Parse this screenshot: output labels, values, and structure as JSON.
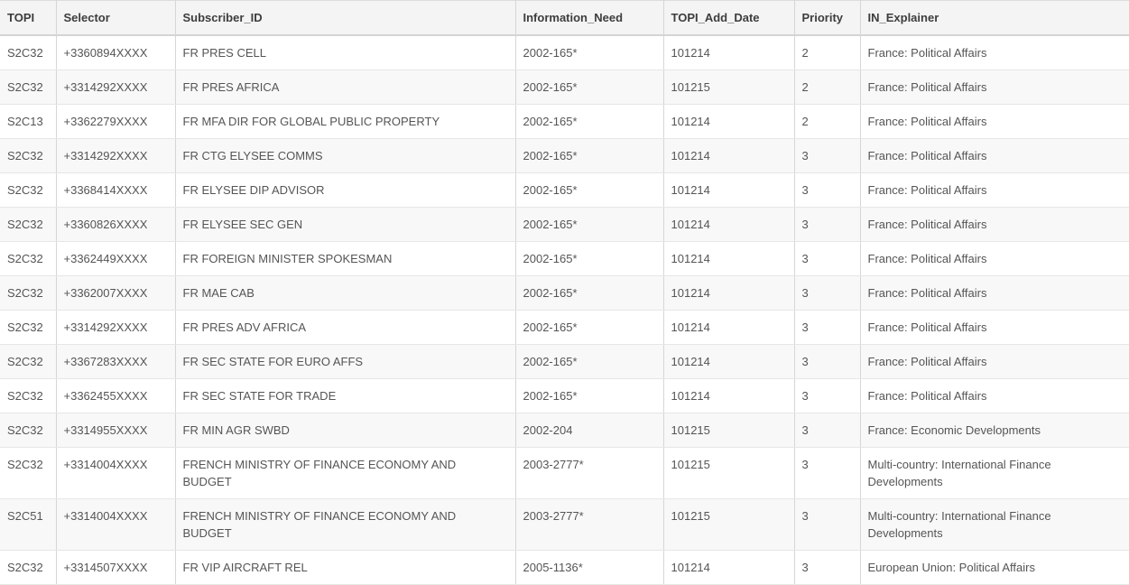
{
  "table": {
    "columns": [
      "TOPI",
      "Selector",
      "Subscriber_ID",
      "Information_Need",
      "TOPI_Add_Date",
      "Priority",
      "IN_Explainer"
    ],
    "rows": [
      [
        "S2C32",
        "+3360894XXXX",
        "FR PRES CELL",
        "2002-165*",
        "101214",
        "2",
        "France: Political Affairs"
      ],
      [
        "S2C32",
        "+3314292XXXX",
        "FR PRES AFRICA",
        "2002-165*",
        "101215",
        "2",
        "France: Political Affairs"
      ],
      [
        "S2C13",
        "+3362279XXXX",
        "FR MFA DIR FOR GLOBAL PUBLIC PROPERTY",
        "2002-165*",
        "101214",
        "2",
        "France: Political Affairs"
      ],
      [
        "S2C32",
        "+3314292XXXX",
        "FR CTG ELYSEE COMMS",
        "2002-165*",
        "101214",
        "3",
        "France: Political Affairs"
      ],
      [
        "S2C32",
        "+3368414XXXX",
        "FR ELYSEE DIP ADVISOR",
        "2002-165*",
        "101214",
        "3",
        "France: Political Affairs"
      ],
      [
        "S2C32",
        "+3360826XXXX",
        "FR ELYSEE SEC GEN",
        "2002-165*",
        "101214",
        "3",
        "France: Political Affairs"
      ],
      [
        "S2C32",
        "+3362449XXXX",
        "FR FOREIGN MINISTER SPOKESMAN",
        "2002-165*",
        "101214",
        "3",
        "France: Political Affairs"
      ],
      [
        "S2C32",
        "+3362007XXXX",
        "FR MAE CAB",
        "2002-165*",
        "101214",
        "3",
        "France: Political Affairs"
      ],
      [
        "S2C32",
        "+3314292XXXX",
        "FR PRES ADV AFRICA",
        "2002-165*",
        "101214",
        "3",
        "France: Political Affairs"
      ],
      [
        "S2C32",
        "+3367283XXXX",
        "FR SEC STATE FOR EURO AFFS",
        "2002-165*",
        "101214",
        "3",
        "France: Political Affairs"
      ],
      [
        "S2C32",
        "+3362455XXXX",
        "FR SEC STATE FOR TRADE",
        "2002-165*",
        "101214",
        "3",
        "France: Political Affairs"
      ],
      [
        "S2C32",
        "+3314955XXXX",
        "FR MIN AGR SWBD",
        "2002-204",
        "101215",
        "3",
        "France: Economic Developments"
      ],
      [
        "S2C32",
        "+3314004XXXX",
        "FRENCH MINISTRY OF FINANCE ECONOMY AND BUDGET",
        "2003-2777*",
        "101215",
        "3",
        "Multi-country: International Finance Developments"
      ],
      [
        "S2C51",
        "+3314004XXXX",
        "FRENCH MINISTRY OF FINANCE ECONOMY AND BUDGET",
        "2003-2777*",
        "101215",
        "3",
        "Multi-country: International Finance Developments"
      ],
      [
        "S2C32",
        "+3314507XXXX",
        "FR VIP AIRCRAFT REL",
        "2005-1136*",
        "101214",
        "3",
        "European Union: Political Affairs"
      ]
    ]
  },
  "colors": {
    "header_background": "#f4f4f4",
    "stripe_background": "#f8f8f8",
    "vertical_border": "#d6d6d6",
    "horizontal_border": "#e6e6e6",
    "header_text": "#3d3d3d",
    "body_text": "#555555"
  }
}
